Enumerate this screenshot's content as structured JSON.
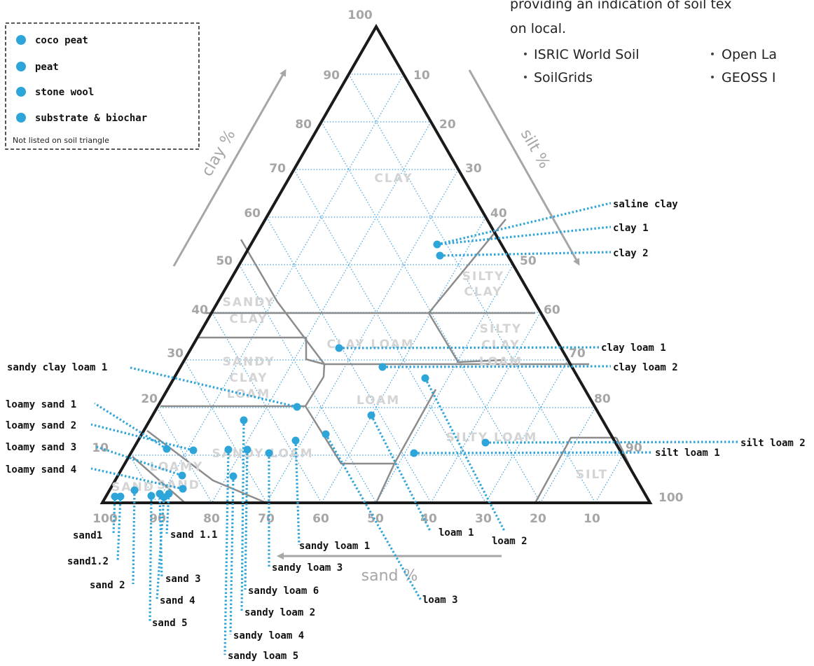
{
  "intro": {
    "lines": [
      "providing an indication of soil tex",
      "on local."
    ],
    "sources": [
      "ISRIC World Soil",
      "SoilGrids",
      "Open La",
      "GEOSS I"
    ]
  },
  "legend": {
    "items": [
      "coco peat",
      "peat",
      "stone wool",
      "substrate & biochar"
    ],
    "note": "Not listed on soil triangle"
  },
  "axes": {
    "clay": "clay %",
    "silt": "silt %",
    "sand": "sand %",
    "clay_ticks": [
      "10",
      "20",
      "30",
      "40",
      "50",
      "60",
      "70",
      "80",
      "90",
      "100"
    ],
    "silt_ticks": [
      "10",
      "20",
      "30",
      "40",
      "50",
      "60",
      "70",
      "80",
      "90",
      "100"
    ],
    "sand_ticks": [
      "100",
      "90",
      "80",
      "70",
      "60",
      "50",
      "40",
      "30",
      "20",
      "10"
    ]
  },
  "regions": [
    [
      "CLAY"
    ],
    [
      "SILTY",
      "CLAY"
    ],
    [
      "SANDY",
      "CLAY"
    ],
    [
      "SILTY",
      "CLAY",
      "LOAM"
    ],
    [
      "CLAY LOAM"
    ],
    [
      "SANDY",
      "CLAY",
      "LOAM"
    ],
    [
      "LOAM"
    ],
    [
      "SILTY LOAM"
    ],
    [
      "SANDY LOAM"
    ],
    [
      "LOAMY",
      "SAND"
    ],
    [
      "SAND"
    ],
    [
      "SILT"
    ]
  ],
  "samples": [
    "saline clay",
    "clay 1",
    "clay 2",
    "clay loam 1",
    "clay loam 2",
    "sandy clay loam 1",
    "loamy sand 1",
    "loamy sand 2",
    "loamy sand 3",
    "loamy sand 4",
    "silt loam 2",
    "silt loam 1",
    "loam 1",
    "loam 2",
    "loam 3",
    "sandy loam 1",
    "sandy loam 3",
    "sandy loam 6",
    "sandy loam 2",
    "sandy loam 4",
    "sandy loam 5",
    "sand1",
    "sand1.2",
    "sand 2",
    "sand 3",
    "sand 4",
    "sand 5",
    "sand 1.1"
  ],
  "colors": {
    "dot": "#2ea5d9",
    "leader": "#2ea5d9",
    "grid": "#3da3e0",
    "boundary": "#8c8c8c",
    "outline": "#1a1a1a",
    "axis": "#a6a6a6"
  }
}
